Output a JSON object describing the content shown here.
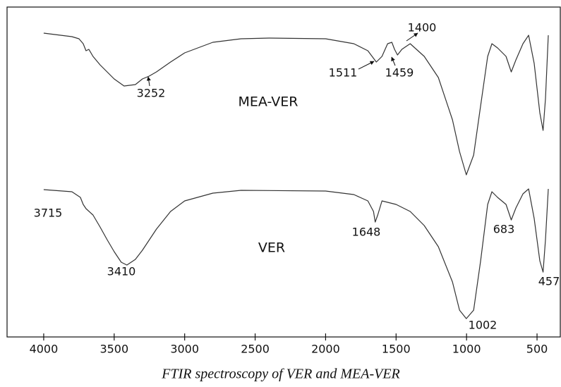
{
  "chart_data": {
    "type": "line",
    "title": "FTIR spectroscopy of VER and MEA-VER",
    "xlim": [
      4260,
      335
    ],
    "xticks": [
      4000,
      3500,
      3000,
      2500,
      2000,
      1500,
      1000,
      500
    ],
    "ylim": [
      0,
      468
    ],
    "color": "#333333",
    "series": [
      {
        "name": "MEA-VER",
        "x": [
          4000,
          3800,
          3750,
          3720,
          3700,
          3680,
          3650,
          3600,
          3500,
          3430,
          3350,
          3300,
          3252,
          3200,
          3100,
          3000,
          2800,
          2600,
          2400,
          2000,
          1800,
          1700,
          1640,
          1600,
          1560,
          1530,
          1511,
          1490,
          1459,
          1430,
          1400,
          1300,
          1200,
          1100,
          1050,
          1002,
          950,
          900,
          850,
          820,
          780,
          720,
          683,
          650,
          600,
          560,
          520,
          480,
          457,
          440,
          420
        ],
        "values": [
          431,
          426,
          423,
          416,
          406,
          408,
          398,
          386,
          366,
          356,
          358,
          366,
          370,
          376,
          390,
          403,
          418,
          423,
          424,
          423,
          416,
          406,
          390,
          398,
          416,
          418,
          408,
          400,
          408,
          412,
          416,
          398,
          368,
          308,
          263,
          230,
          258,
          328,
          398,
          416,
          410,
          398,
          376,
          393,
          416,
          428,
          388,
          318,
          293,
          338,
          428
        ],
        "peaks": [
          3252,
          1511,
          1459,
          1400
        ]
      },
      {
        "name": "VER",
        "x": [
          4000,
          3800,
          3740,
          3720,
          3700,
          3650,
          3600,
          3550,
          3500,
          3450,
          3410,
          3350,
          3300,
          3200,
          3100,
          3000,
          2800,
          2600,
          2000,
          1800,
          1700,
          1660,
          1648,
          1630,
          1600,
          1500,
          1400,
          1300,
          1200,
          1100,
          1050,
          1002,
          950,
          900,
          850,
          820,
          780,
          720,
          683,
          650,
          600,
          560,
          520,
          480,
          457,
          440,
          420
        ],
        "values": [
          209,
          206,
          198,
          188,
          182,
          173,
          156,
          138,
          121,
          106,
          102,
          110,
          123,
          153,
          178,
          193,
          204,
          208,
          207,
          202,
          193,
          178,
          163,
          173,
          193,
          188,
          178,
          158,
          128,
          78,
          38,
          26,
          38,
          108,
          188,
          206,
          198,
          188,
          166,
          183,
          203,
          210,
          168,
          108,
          92,
          138,
          210
        ],
        "peaks": [
          3715,
          3410,
          1648,
          1002,
          683,
          457
        ]
      }
    ]
  }
}
